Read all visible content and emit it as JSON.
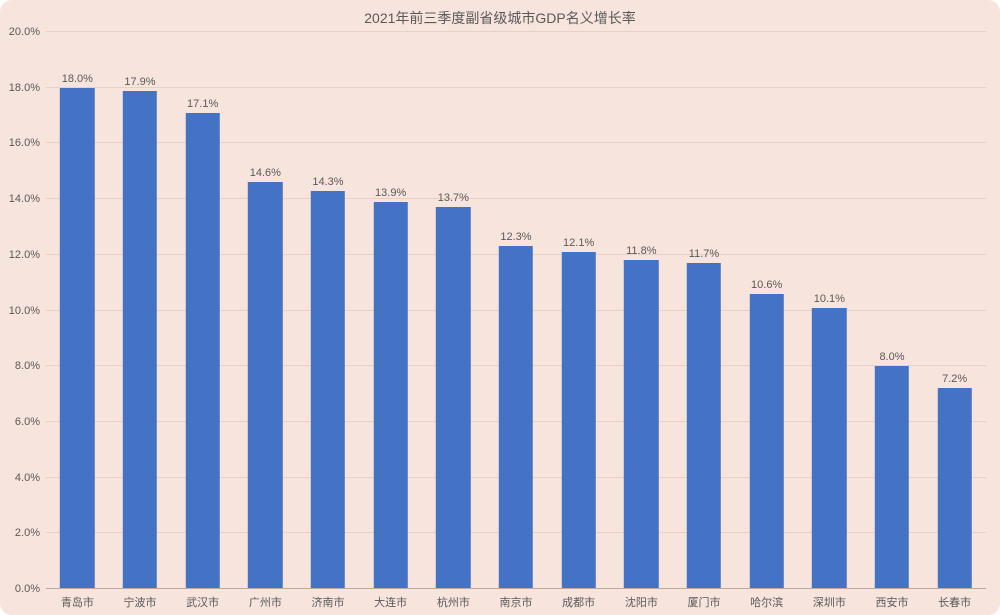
{
  "chart": {
    "type": "bar",
    "title": "2021年前三季度副省级城市GDP名义增长率",
    "title_fontsize": 14,
    "title_color": "#595959",
    "background_color": "#f7e4dc",
    "plot_background": "#f7e4dc",
    "grid_color": "#e8d0c7",
    "baseline_color": "#bfa99f",
    "bar_color": "#4472c4",
    "bar_width_ratio": 0.55,
    "bar_label_fontsize": 11,
    "bar_label_color": "#595959",
    "xlabel_fontsize": 11,
    "xlabel_color": "#595959",
    "ylabel_fontsize": 11,
    "ylabel_color": "#595959",
    "ylim": [
      0,
      20
    ],
    "ytick_step": 2,
    "ytick_format": "percent1",
    "categories": [
      "青岛市",
      "宁波市",
      "武汉市",
      "广州市",
      "济南市",
      "大连市",
      "杭州市",
      "南京市",
      "成都市",
      "沈阳市",
      "厦门市",
      "哈尔滨",
      "深圳市",
      "西安市",
      "长春市"
    ],
    "values": [
      18.0,
      17.9,
      17.1,
      14.6,
      14.3,
      13.9,
      13.7,
      12.3,
      12.1,
      11.8,
      11.7,
      10.6,
      10.1,
      8.0,
      7.2
    ],
    "value_labels": [
      "18.0%",
      "17.9%",
      "17.1%",
      "14.6%",
      "14.3%",
      "13.9%",
      "13.7%",
      "12.3%",
      "12.1%",
      "11.8%",
      "11.7%",
      "10.6%",
      "10.1%",
      "8.0%",
      "7.2%"
    ]
  }
}
